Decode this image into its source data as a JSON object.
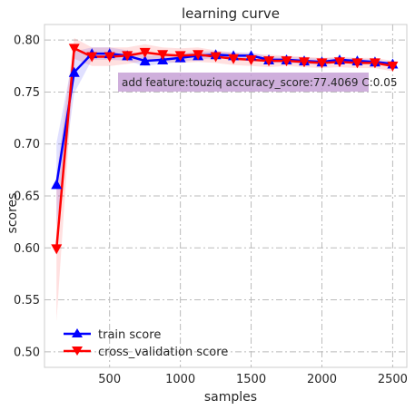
{
  "chart_data": {
    "type": "line",
    "title": "learning curve",
    "xlabel": "samples",
    "ylabel": "scores",
    "xlim": [
      40,
      2600
    ],
    "ylim": [
      0.485,
      0.815
    ],
    "xticks": [
      500,
      1000,
      1500,
      2000,
      2500
    ],
    "yticks": [
      0.5,
      0.55,
      0.6,
      0.65,
      0.7,
      0.75,
      0.8
    ],
    "x": [
      125,
      250,
      375,
      500,
      625,
      750,
      875,
      1000,
      1125,
      1250,
      1375,
      1500,
      1625,
      1750,
      1875,
      2000,
      2125,
      2250,
      2375,
      2500
    ],
    "grid": true,
    "legend_position": "lower-left",
    "annotation": "add feature:touziq accuracy_score:77.4069 C:0.05",
    "series": [
      {
        "name": "train score",
        "color": "#0000ff",
        "marker": "triangle-up",
        "values": [
          0.661,
          0.769,
          0.787,
          0.787,
          0.785,
          0.78,
          0.781,
          0.783,
          0.785,
          0.786,
          0.785,
          0.785,
          0.781,
          0.781,
          0.78,
          0.779,
          0.781,
          0.78,
          0.779,
          0.777
        ],
        "band": [
          0.04,
          0.02,
          0.006,
          0.006,
          0.005,
          0.005,
          0.004,
          0.004,
          0.004,
          0.003,
          0.003,
          0.003,
          0.003,
          0.003,
          0.003,
          0.003,
          0.002,
          0.002,
          0.002,
          0.002
        ]
      },
      {
        "name": "cross_validation score",
        "color": "#ff0000",
        "marker": "triangle-down",
        "values": [
          0.599,
          0.792,
          0.784,
          0.784,
          0.785,
          0.788,
          0.786,
          0.785,
          0.786,
          0.784,
          0.782,
          0.781,
          0.78,
          0.78,
          0.779,
          0.778,
          0.779,
          0.778,
          0.778,
          0.775
        ],
        "band": [
          0.07,
          0.01,
          0.009,
          0.009,
          0.008,
          0.008,
          0.007,
          0.007,
          0.007,
          0.006,
          0.006,
          0.006,
          0.006,
          0.005,
          0.005,
          0.005,
          0.005,
          0.005,
          0.005,
          0.005
        ]
      }
    ]
  },
  "colors": {
    "train": "#0000ff",
    "cv": "#ff0000",
    "annotation_box": "#c39bd3"
  }
}
